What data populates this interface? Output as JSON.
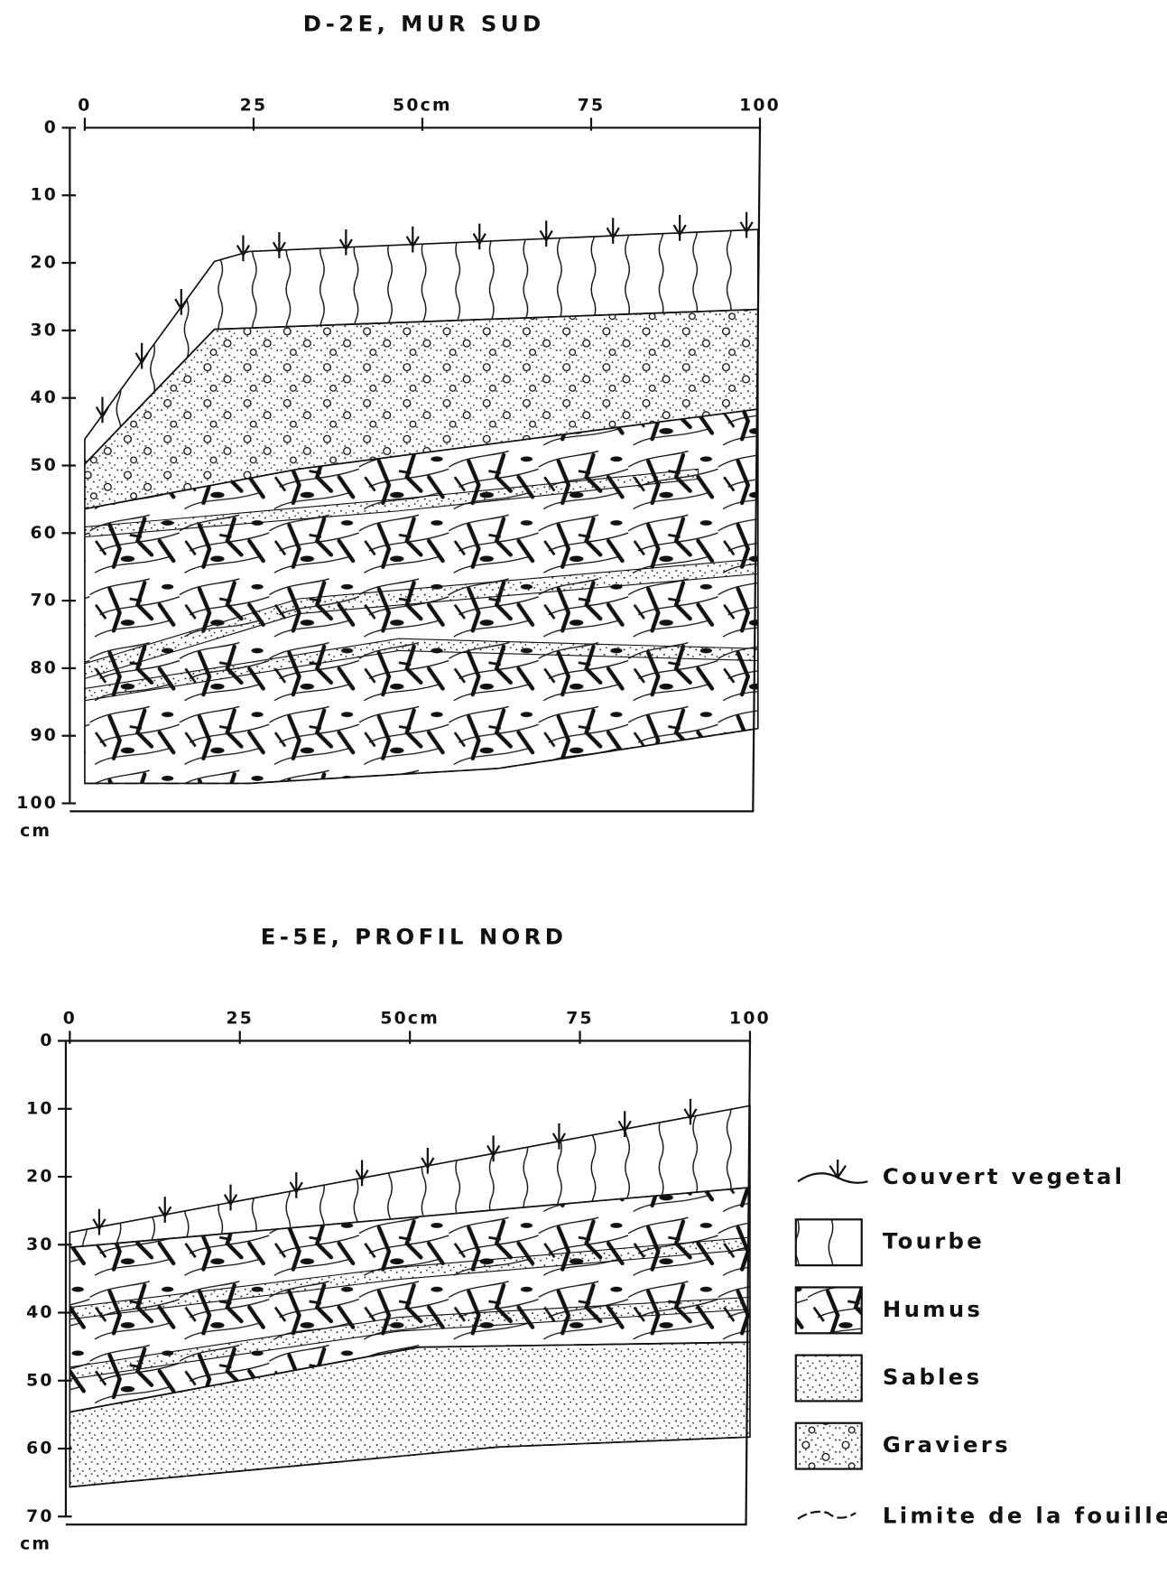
{
  "profiles": [
    {
      "title": "D-2E, MUR SUD",
      "x_ticks": [
        "0",
        "25",
        "50cm",
        "75",
        "100"
      ],
      "y_ticks": [
        "0",
        "10",
        "20",
        "30",
        "40",
        "50",
        "60",
        "70",
        "80",
        "90",
        "100"
      ],
      "y_unit": "cm"
    },
    {
      "title": "E-5E, PROFIL NORD",
      "x_ticks": [
        "0",
        "25",
        "50cm",
        "75",
        "100"
      ],
      "y_ticks": [
        "0",
        "10",
        "20",
        "30",
        "40",
        "50",
        "60",
        "70"
      ],
      "y_unit": "cm"
    }
  ],
  "legend": [
    "Couvert vegetal",
    "Tourbe",
    "Humus",
    "Sables",
    "Graviers",
    "Limite de la fouille"
  ]
}
